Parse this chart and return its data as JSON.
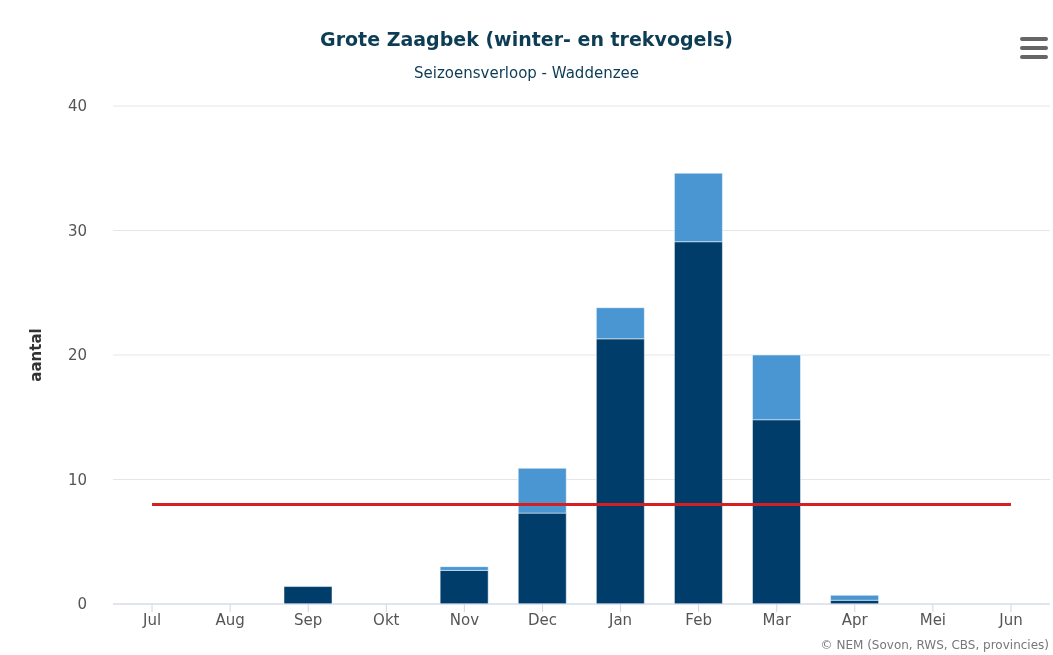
{
  "chart_data": {
    "type": "bar",
    "title": "Grote Zaagbek (winter- en trekvogels)",
    "subtitle": "Seizoensverloop - Waddenzee",
    "ylabel": "aantal",
    "categories": [
      "Jul",
      "Aug",
      "Sep",
      "Okt",
      "Nov",
      "Dec",
      "Jan",
      "Feb",
      "Mar",
      "Apr",
      "Mei",
      "Jun"
    ],
    "stacked": true,
    "series": [
      {
        "color": "#003d6b",
        "values": [
          0,
          0,
          1.4,
          0,
          2.7,
          7.3,
          21.3,
          29.1,
          14.8,
          0.3,
          0,
          0
        ]
      },
      {
        "color": "#4a96d2",
        "values": [
          0,
          0,
          0,
          0,
          0.3,
          3.6,
          2.5,
          5.5,
          5.2,
          0.4,
          0,
          0
        ]
      }
    ],
    "ylim": [
      0,
      40
    ],
    "yticks": [
      0,
      10,
      20,
      30,
      40
    ],
    "grid": "y",
    "legend": false,
    "ref_lines": [
      {
        "axis": "y",
        "value": 8,
        "color": "#d42020"
      }
    ],
    "annotations": [
      "© NEM (Sovon, RWS, CBS, provincies)"
    ]
  }
}
